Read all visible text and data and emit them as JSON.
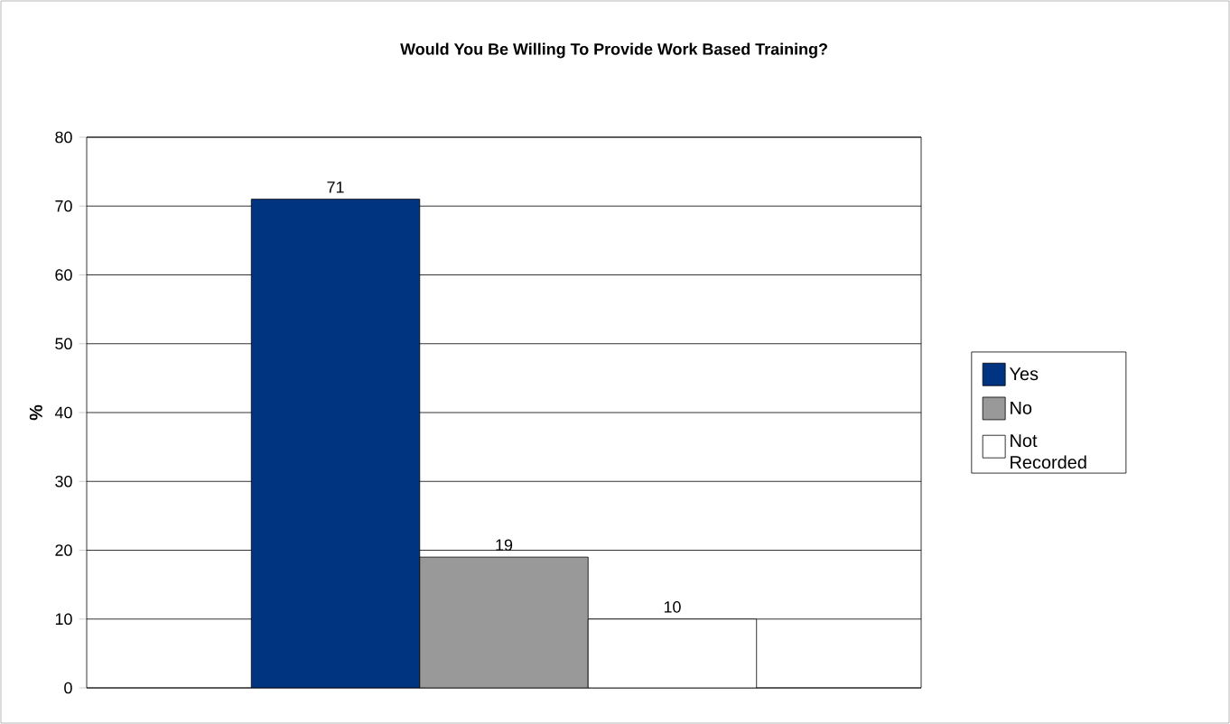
{
  "chart_data": {
    "type": "bar",
    "title": "Would You Be Willing To Provide Work Based Training?",
    "ylabel": "%",
    "categories": [
      null
    ],
    "series": [
      {
        "name": "Yes",
        "color": "#003380",
        "values": [
          71
        ]
      },
      {
        "name": "No",
        "color": "#999999",
        "values": [
          19
        ]
      },
      {
        "name": "Not Recorded",
        "color": "#ffffff",
        "values": [
          10
        ]
      }
    ],
    "ylim": [
      0,
      80
    ],
    "yticks": [
      0,
      10,
      20,
      30,
      40,
      50,
      60,
      70,
      80
    ],
    "grid": "y",
    "legend": "right",
    "data_labels": true
  }
}
